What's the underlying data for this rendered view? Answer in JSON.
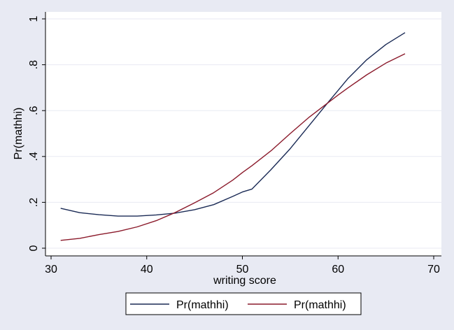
{
  "chart_data": {
    "type": "line",
    "title": "",
    "xlabel": "writing score",
    "ylabel": "Pr(mathhi)",
    "xlim": [
      30,
      70
    ],
    "ylim": [
      0,
      1
    ],
    "xticks": [
      30,
      40,
      50,
      60,
      70
    ],
    "yticks": [
      0,
      0.2,
      0.4,
      0.6,
      0.8,
      1
    ],
    "xtick_labels": [
      "30",
      "40",
      "50",
      "60",
      "70"
    ],
    "ytick_labels": [
      "0",
      ".2",
      ".4",
      ".6",
      ".8",
      "1"
    ],
    "grid": "horizontal",
    "legend_position": "bottom",
    "series": [
      {
        "name": "Pr(mathhi)",
        "color": "#1a2a55",
        "x": [
          31,
          33,
          35,
          37,
          39,
          41,
          43,
          45,
          47,
          49,
          50,
          51,
          53,
          55,
          57,
          59,
          60,
          61,
          63,
          65,
          67
        ],
        "y": [
          0.174,
          0.155,
          0.146,
          0.14,
          0.14,
          0.145,
          0.153,
          0.168,
          0.19,
          0.226,
          0.245,
          0.258,
          0.343,
          0.434,
          0.536,
          0.638,
          0.688,
          0.738,
          0.822,
          0.888,
          0.94
        ]
      },
      {
        "name": "Pr(mathhi)",
        "color": "#8b1a2b",
        "x": [
          31,
          33,
          35,
          37,
          39,
          41,
          43,
          45,
          47,
          49,
          50,
          51,
          53,
          55,
          57,
          59,
          60,
          61,
          63,
          65,
          67
        ],
        "y": [
          0.034,
          0.043,
          0.059,
          0.073,
          0.093,
          0.12,
          0.156,
          0.198,
          0.242,
          0.297,
          0.33,
          0.36,
          0.425,
          0.5,
          0.572,
          0.636,
          0.668,
          0.698,
          0.756,
          0.807,
          0.848
        ]
      }
    ]
  },
  "colors": {
    "page_background": "#e8eaf3",
    "plot_background": "#ffffff",
    "grid": "#e8eaf3",
    "axis": "#000000"
  }
}
